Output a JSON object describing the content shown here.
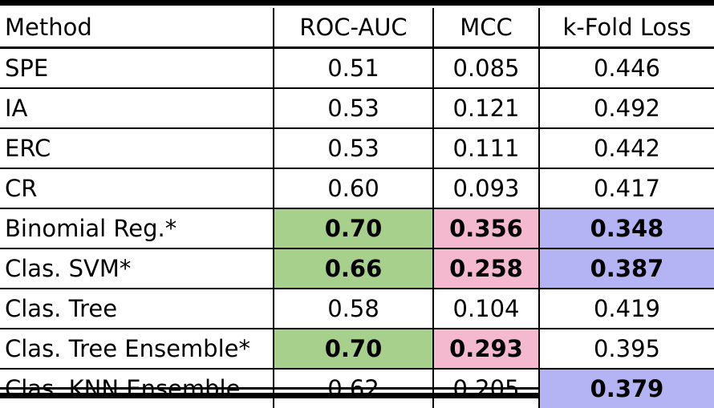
{
  "table": {
    "headers": [
      "Method",
      "ROC-AUC",
      "MCC",
      "k-Fold Loss"
    ],
    "rows": [
      {
        "method": "SPE",
        "roc_auc": "0.51",
        "mcc": "0.085",
        "kfold": "0.446"
      },
      {
        "method": "IA",
        "roc_auc": "0.53",
        "mcc": "0.121",
        "kfold": "0.492"
      },
      {
        "method": "ERC",
        "roc_auc": "0.53",
        "mcc": "0.111",
        "kfold": "0.442"
      },
      {
        "method": "CR",
        "roc_auc": "0.60",
        "mcc": "0.093",
        "kfold": "0.417"
      },
      {
        "method": "Binomial Reg.*",
        "roc_auc": "0.70",
        "mcc": "0.356",
        "kfold": "0.348"
      },
      {
        "method": "Clas. SVM*",
        "roc_auc": "0.66",
        "mcc": "0.258",
        "kfold": "0.387"
      },
      {
        "method": "Clas. Tree",
        "roc_auc": "0.58",
        "mcc": "0.104",
        "kfold": "0.419"
      },
      {
        "method": "Clas. Tree Ensemble*",
        "roc_auc": "0.70",
        "mcc": "0.293",
        "kfold": "0.395"
      },
      {
        "method": "Clas. KNN Ensemble",
        "roc_auc": "0.62",
        "mcc": "0.205",
        "kfold": "0.379"
      }
    ]
  },
  "highlight_colors": {
    "roc_auc": "#a8d08d",
    "mcc": "#f4b9cf",
    "kfold": "#b4b4f4"
  }
}
